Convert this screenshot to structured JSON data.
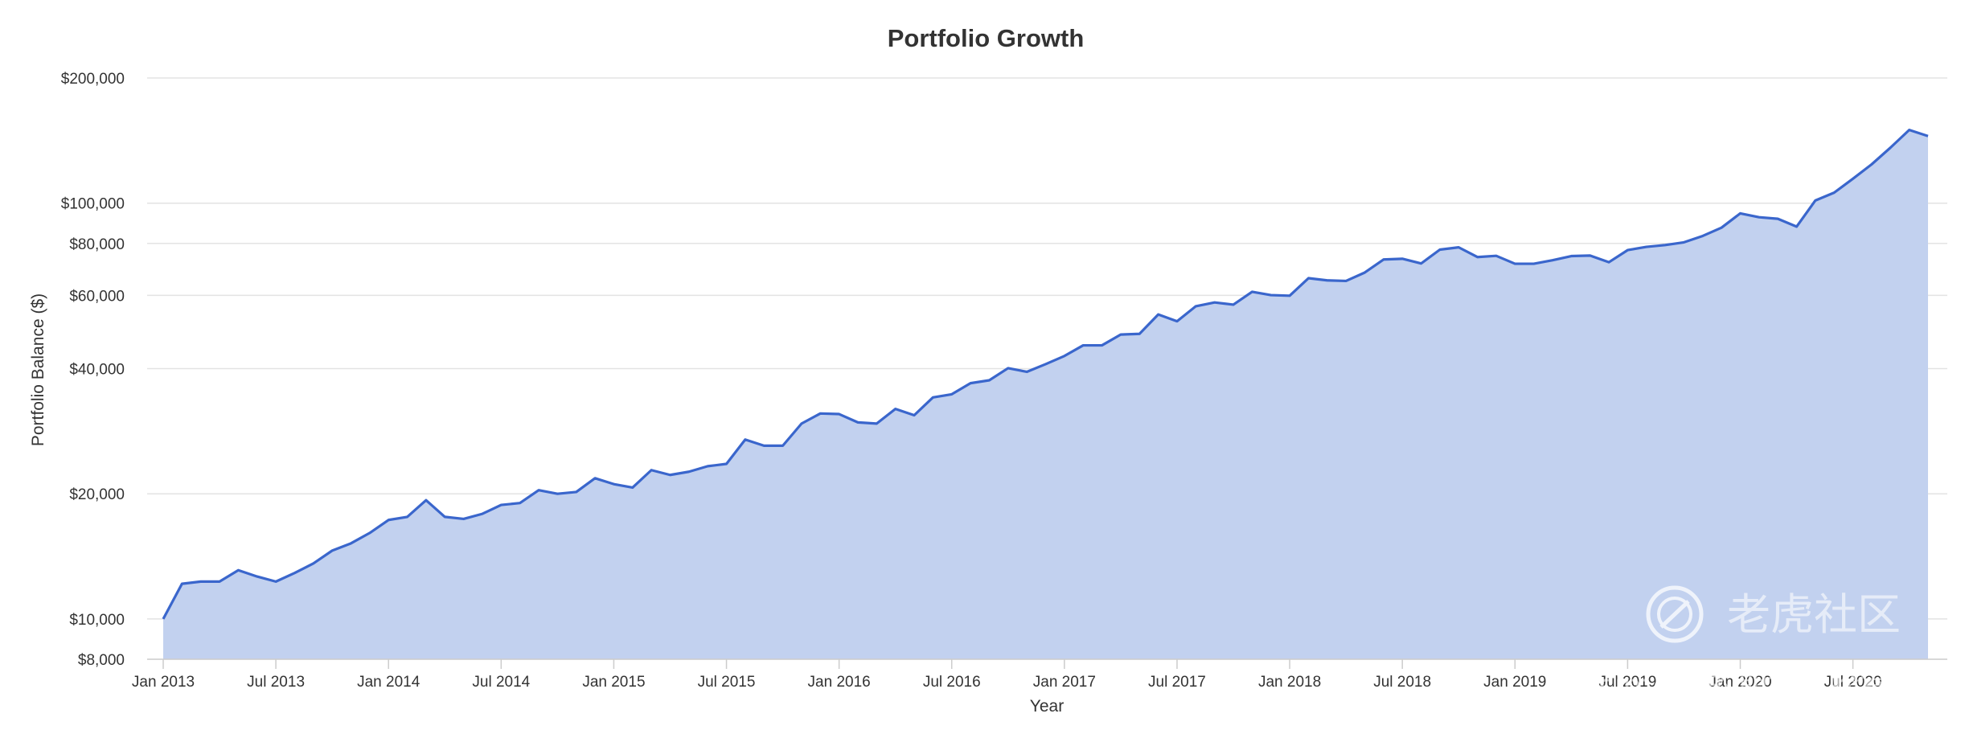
{
  "chart_data": {
    "type": "area",
    "title": "Portfolio Growth",
    "xlabel": "Year",
    "ylabel": "Portfolio Balance ($)",
    "y_scale": "log",
    "ylim": [
      8000,
      200000
    ],
    "y_ticks": [
      {
        "value": 8000,
        "label": "$8,000"
      },
      {
        "value": 10000,
        "label": "$10,000"
      },
      {
        "value": 20000,
        "label": "$20,000"
      },
      {
        "value": 40000,
        "label": "$40,000"
      },
      {
        "value": 60000,
        "label": "$60,000"
      },
      {
        "value": 80000,
        "label": "$80,000"
      },
      {
        "value": 100000,
        "label": "$100,000"
      },
      {
        "value": 200000,
        "label": "$200,000"
      }
    ],
    "x_ticks": [
      "Jan 2013",
      "Jul 2013",
      "Jan 2014",
      "Jul 2014",
      "Jan 2015",
      "Jul 2015",
      "Jan 2016",
      "Jul 2016",
      "Jan 2017",
      "Jul 2017",
      "Jan 2018",
      "Jul 2018",
      "Jan 2019",
      "Jul 2019",
      "Jan 2020",
      "Jul 2020"
    ],
    "x_start": "Jan 2013",
    "grid": true,
    "legend": "none",
    "color": "#3a66cc",
    "fill_color": "#c2d1ef",
    "series": [
      {
        "values": [
          10000,
          12150,
          12300,
          12300,
          13100,
          12650,
          12300,
          12900,
          13600,
          14600,
          15200,
          16100,
          17300,
          17600,
          19300,
          17600,
          17400,
          17900,
          18800,
          19000,
          20400,
          20000,
          20200,
          21800,
          21100,
          20700,
          22800,
          22200,
          22600,
          23300,
          23600,
          27000,
          26100,
          26100,
          29500,
          31200,
          31100,
          29700,
          29500,
          32000,
          30900,
          34100,
          34700,
          36900,
          37500,
          40100,
          39300,
          41000,
          42900,
          45500,
          45500,
          48300,
          48500,
          54000,
          52000,
          56500,
          57700,
          57000,
          61200,
          60100,
          59900,
          66000,
          65200,
          65000,
          68100,
          73200,
          73500,
          71600,
          77300,
          78300,
          74200,
          74700,
          71500,
          71500,
          72900,
          74600,
          74800,
          72100,
          77100,
          78500,
          79300,
          80500,
          83400,
          87300,
          94500,
          92500,
          91700,
          87800,
          101500,
          106000,
          114500,
          124000,
          136000,
          150000,
          145000
        ]
      }
    ],
    "watermark": {
      "brand": "老虎社区",
      "handle": "@simons的期权实验室"
    }
  }
}
